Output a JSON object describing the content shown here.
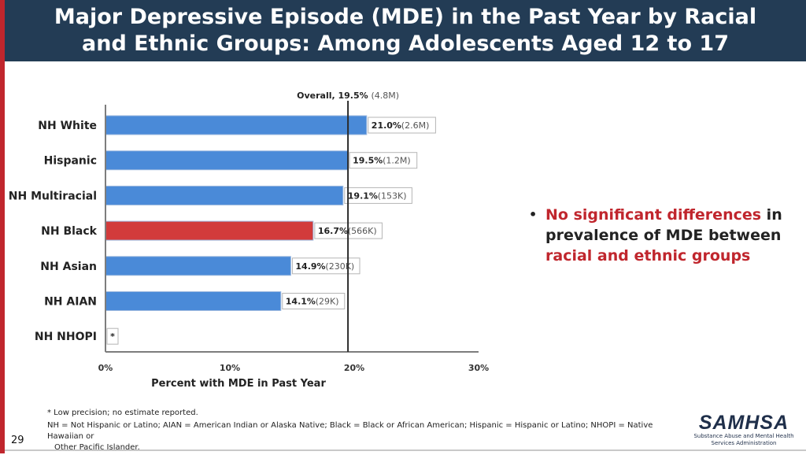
{
  "header": {
    "title": "Major Depressive Episode (MDE) in the Past Year by Racial and Ethnic Groups: Among Adolescents Aged 12 to 17"
  },
  "chart_data": {
    "type": "bar",
    "orientation": "horizontal",
    "categories": [
      "NH White",
      "Hispanic",
      "NH Multiracial",
      "NH Black",
      "NH Asian",
      "NH AIAN",
      "NH NHOPI"
    ],
    "values": [
      21.0,
      19.5,
      19.1,
      16.7,
      14.9,
      14.1,
      null
    ],
    "data_labels": [
      {
        "pct": "21.0%",
        "count": "(2.6M)"
      },
      {
        "pct": "19.5%",
        "count": "(1.2M)"
      },
      {
        "pct": "19.1%",
        "count": "(153K)"
      },
      {
        "pct": "16.7%",
        "count": "(566K)"
      },
      {
        "pct": "14.9%",
        "count": "(230K)"
      },
      {
        "pct": "14.1%",
        "count": "(29K)"
      },
      {
        "pct": "*",
        "count": ""
      }
    ],
    "highlight_category": "NH Black",
    "bar_color": "#4a8ad8",
    "highlight_color": "#d23b3b",
    "reference_line": {
      "value": 19.5,
      "label": "Overall, 19.5%",
      "count": "(4.8M)"
    },
    "xlim": [
      0,
      30
    ],
    "xticks": [
      "0%",
      "10%",
      "20%",
      "30%"
    ],
    "xtick_values": [
      0,
      10,
      20,
      30
    ],
    "xlabel": "Percent with MDE in Past Year",
    "ylabel": "",
    "title": ""
  },
  "callout": {
    "bullet": "•",
    "highlight_1": "No significant differences",
    "text_1": " in prevalence of MDE between ",
    "highlight_2": "racial and ethnic groups"
  },
  "footnotes": {
    "note_1": "* Low precision; no estimate reported.",
    "note_2a": "NH = Not Hispanic or Latino; AIAN = American Indian or Alaska Native; Black = Black or African American; Hispanic = Hispanic or Latino; NHOPI = Native Hawaiian or",
    "note_2b": "Other Pacific Islander."
  },
  "page_number": "29",
  "logo": {
    "name": "SAMHSA",
    "subtitle_1": "Substance Abuse and Mental Health",
    "subtitle_2": "Services Administration"
  },
  "colors": {
    "header_bg": "#233c55",
    "accent_red": "#c0262d"
  }
}
